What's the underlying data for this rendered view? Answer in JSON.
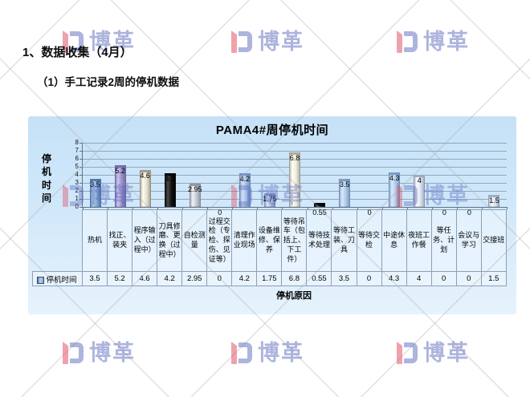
{
  "page": {
    "heading": "1、数据收集（4月）",
    "subheading": "（1）手工记录2周的停机数据"
  },
  "watermark": {
    "brand": "博革",
    "icon": "BG-logo"
  },
  "chart_data": {
    "type": "bar",
    "title": "PAMA4#周停机时间",
    "ylabel": "停机时间",
    "xlabel": "停机原因",
    "ylim": [
      0,
      8
    ],
    "ytick_step": 1,
    "grid": true,
    "legend_position": "data-table-row",
    "data_table_shown": true,
    "categories": [
      "热机",
      "找正、装夹",
      "程序输入（过程中）",
      "刀具修磨、更换（过程中）",
      "自检测量",
      "过程交检（专检、探伤、见证等）",
      "清理作业现场",
      "设备维修、保养",
      "等待吊车（包括上、下工件）",
      "等待技术处理",
      "等待工装、刀具",
      "等待交检",
      "中途休息",
      "夜班工作餐",
      "等任务、计划",
      "会议与学习",
      "交接班"
    ],
    "series": [
      {
        "name": "停机时间",
        "values": [
          3.5,
          5.2,
          4.6,
          4.2,
          2.95,
          0,
          4.2,
          1.75,
          6.8,
          0.55,
          3.5,
          0,
          4.3,
          4,
          0,
          0,
          1.5
        ]
      }
    ],
    "bar_colors": [
      {
        "base": "#7fa8d6",
        "light": "#b9d4f0",
        "dark": "#4a74a8"
      },
      {
        "base": "#958cc9",
        "light": "#cfc9ec",
        "dark": "#6f66ab"
      },
      {
        "base": "#e8e3d2",
        "light": "#fffdf2",
        "dark": "#9e9784"
      },
      {
        "base": "#111111",
        "light": "#4a4a4a",
        "dark": "#000000"
      },
      {
        "base": "#c3c9cf",
        "light": "#f2f4f6",
        "dark": "#8d949c"
      },
      {
        "base": "#aecbe8",
        "light": "#ddeafa",
        "dark": "#7397c2"
      },
      {
        "base": "#a3bce3",
        "light": "#d6e3f7",
        "dark": "#6d8fc4"
      },
      {
        "base": "#aabcdf",
        "light": "#dbe4f6",
        "dark": "#7e93c4"
      },
      {
        "base": "#efede0",
        "light": "#fffff8",
        "dark": "#a8a696"
      },
      {
        "base": "#111111",
        "light": "#4a4a4a",
        "dark": "#000000"
      },
      {
        "base": "#aecbe8",
        "light": "#ddeafa",
        "dark": "#7397c2"
      },
      {
        "base": "#aecbe8",
        "light": "#ddeafa",
        "dark": "#7397c2"
      },
      {
        "base": "#aecbe8",
        "light": "#ddeafa",
        "dark": "#7397c2"
      },
      {
        "base": "#dde4ee",
        "light": "#fbfcfe",
        "dark": "#9aa6bc"
      },
      {
        "base": "#dde6f1",
        "light": "#f6f9fd",
        "dark": "#9aa9c0"
      },
      {
        "base": "#dde6f1",
        "light": "#f6f9fd",
        "dark": "#9aa9c0"
      },
      {
        "base": "#dde6f1",
        "light": "#f6f9fd",
        "dark": "#9aa9c0"
      }
    ]
  }
}
